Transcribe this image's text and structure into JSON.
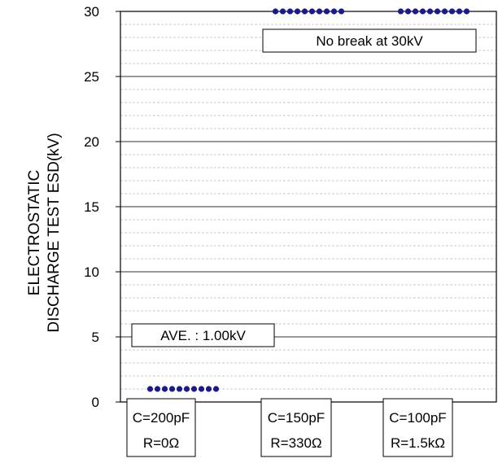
{
  "chart_data": {
    "type": "scatter",
    "ylabel_lines": [
      "ELECTROSTATIC",
      "DISCHARGE TEST ESD(kV)"
    ],
    "ylim": [
      0,
      30
    ],
    "yticks": [
      0,
      5,
      10,
      15,
      20,
      25,
      30
    ],
    "grid": "horizontal minor lines every 1kV, major every 5kV",
    "categories": [
      {
        "line1": "C=200pF",
        "line2": "R=0Ω"
      },
      {
        "line1": "C=150pF",
        "line2": "R=330Ω"
      },
      {
        "line1": "C=100pF",
        "line2": "R=1.5kΩ"
      }
    ],
    "series": [
      {
        "category_index": 0,
        "values": [
          1,
          1,
          1,
          1,
          1,
          1,
          1,
          1,
          1,
          1
        ]
      },
      {
        "category_index": 1,
        "values": [
          30,
          30,
          30,
          30,
          30,
          30,
          30,
          30,
          30,
          30
        ]
      },
      {
        "category_index": 2,
        "values": [
          30,
          30,
          30,
          30,
          30,
          30,
          30,
          30,
          30,
          30
        ]
      }
    ],
    "annotations": [
      {
        "text": "AVE. : 1.00kV",
        "category_index": 0
      },
      {
        "text": "No break at 30kV",
        "category_index": 2
      }
    ],
    "colors": {
      "point": "#1a1a8c",
      "axis": "#000000",
      "grid": "#999999"
    }
  }
}
